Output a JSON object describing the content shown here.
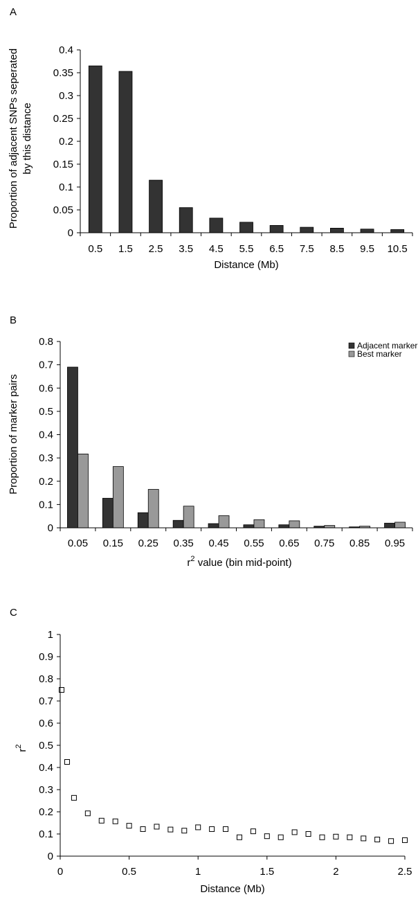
{
  "chart_data": [
    {
      "panel_label": "A",
      "type": "bar",
      "ylabel_lines": [
        "Proportion of adjacent SNPs seperated",
        "by this distance"
      ],
      "xlabel": "Distance (Mb)",
      "categories": [
        "0.5",
        "1.5",
        "2.5",
        "3.5",
        "4.5",
        "5.5",
        "6.5",
        "7.5",
        "8.5",
        "9.5",
        "10.5"
      ],
      "values": [
        0.365,
        0.353,
        0.115,
        0.055,
        0.032,
        0.023,
        0.016,
        0.012,
        0.01,
        0.008,
        0.007
      ],
      "ylim": [
        0,
        0.4
      ],
      "yticks": [
        "0",
        "0.05",
        "0.1",
        "0.15",
        "0.2",
        "0.25",
        "0.3",
        "0.35",
        "0.4"
      ],
      "colors": [
        "#333333"
      ],
      "grid": false
    },
    {
      "panel_label": "B",
      "type": "bar",
      "ylabel": "Proportion of marker pairs",
      "xlabel_pre": "r",
      "xlabel_sup": "2",
      "xlabel_post": " value (bin mid-point)",
      "categories": [
        "0.05",
        "0.15",
        "0.25",
        "0.35",
        "0.45",
        "0.55",
        "0.65",
        "0.75",
        "0.85",
        "0.95"
      ],
      "series": [
        {
          "name": "Adjacent marker",
          "color": "#333333",
          "values": [
            0.69,
            0.127,
            0.065,
            0.032,
            0.018,
            0.013,
            0.013,
            0.007,
            0.004,
            0.02
          ]
        },
        {
          "name": "Best marker",
          "color": "#999999",
          "values": [
            0.317,
            0.263,
            0.165,
            0.093,
            0.052,
            0.035,
            0.03,
            0.01,
            0.007,
            0.024
          ]
        }
      ],
      "ylim": [
        0,
        0.8
      ],
      "yticks": [
        "0",
        "0.1",
        "0.2",
        "0.3",
        "0.4",
        "0.5",
        "0.6",
        "0.7",
        "0.8"
      ],
      "legend_position": "top-right",
      "grid": false
    },
    {
      "panel_label": "C",
      "type": "scatter",
      "ylabel_pre": "r",
      "ylabel_sup": "2",
      "xlabel": "Distance (Mb)",
      "x": [
        0.01,
        0.05,
        0.1,
        0.2,
        0.3,
        0.4,
        0.5,
        0.6,
        0.7,
        0.8,
        0.9,
        1.0,
        1.1,
        1.2,
        1.3,
        1.4,
        1.5,
        1.6,
        1.7,
        1.8,
        1.9,
        2.0,
        2.1,
        2.2,
        2.3,
        2.4,
        2.5
      ],
      "y": [
        0.75,
        0.425,
        0.263,
        0.193,
        0.16,
        0.157,
        0.137,
        0.122,
        0.133,
        0.12,
        0.115,
        0.13,
        0.122,
        0.122,
        0.085,
        0.112,
        0.09,
        0.085,
        0.108,
        0.1,
        0.085,
        0.088,
        0.085,
        0.08,
        0.075,
        0.068,
        0.072
      ],
      "xlim": [
        0,
        2.5
      ],
      "ylim": [
        0,
        1
      ],
      "xticks": [
        "0",
        "0.5",
        "1",
        "1.5",
        "2",
        "2.5"
      ],
      "yticks": [
        "0",
        "0.1",
        "0.2",
        "0.3",
        "0.4",
        "0.5",
        "0.6",
        "0.7",
        "0.8",
        "0.9",
        "1"
      ],
      "marker": "open-square",
      "grid": false
    }
  ]
}
